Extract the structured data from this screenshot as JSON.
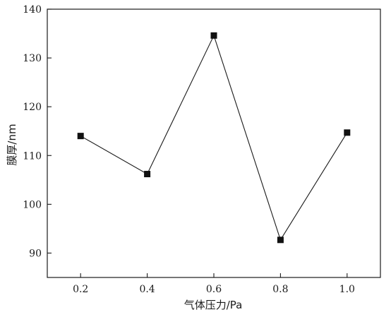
{
  "chart_data": {
    "type": "line",
    "title": "",
    "xlabel": "气体压力/Pa",
    "ylabel": "膜厚/nm",
    "x": [
      0.2,
      0.4,
      0.6,
      0.8,
      1.0
    ],
    "x_tick_labels": [
      "0.2",
      "0.4",
      "0.6",
      "0.8",
      "1.0"
    ],
    "y_tick_values": [
      90,
      100,
      110,
      120,
      130,
      140
    ],
    "y_tick_labels": [
      "90",
      "100",
      "110",
      "120",
      "130",
      "140"
    ],
    "xlim": [
      0.1,
      1.1
    ],
    "ylim": [
      85,
      140
    ],
    "grid": false,
    "legend": "none",
    "series": [
      {
        "values": [
          114,
          106.2,
          134.6,
          92.7,
          114.7
        ],
        "marker": "square",
        "color": "#111111"
      }
    ]
  }
}
